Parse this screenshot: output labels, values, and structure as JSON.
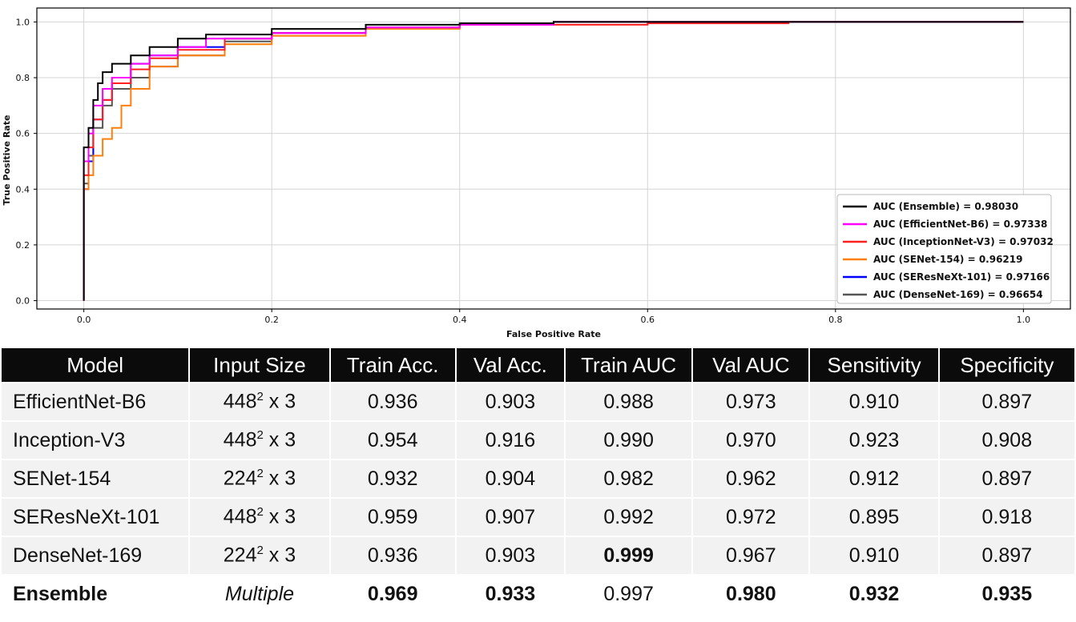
{
  "chart_data": {
    "type": "line",
    "xlabel": "False Positive Rate",
    "ylabel": "True Positive Rate",
    "xlim": [
      -0.05,
      1.05
    ],
    "ylim": [
      -0.03,
      1.05
    ],
    "x_ticks": [
      "0.0",
      "0.2",
      "0.4",
      "0.6",
      "0.8",
      "1.0"
    ],
    "y_ticks": [
      "0.0",
      "0.2",
      "0.4",
      "0.6",
      "0.8",
      "1.0"
    ],
    "grid": true,
    "legend_position": "bottom-right",
    "series": [
      {
        "name": "AUC (Ensemble) = 0.98030",
        "color": "#000000",
        "x": [
          0,
          0.0,
          0.005,
          0.01,
          0.015,
          0.02,
          0.03,
          0.05,
          0.07,
          0.1,
          0.13,
          0.2,
          0.3,
          0.4,
          0.5,
          1.0
        ],
        "y": [
          0,
          0.55,
          0.62,
          0.72,
          0.78,
          0.82,
          0.85,
          0.88,
          0.91,
          0.94,
          0.955,
          0.975,
          0.99,
          0.995,
          1.0,
          1.0
        ]
      },
      {
        "name": "AUC (EfficientNet-B6) = 0.97338",
        "color": "#ff00ff",
        "x": [
          0,
          0.0,
          0.005,
          0.01,
          0.02,
          0.03,
          0.05,
          0.07,
          0.1,
          0.13,
          0.2,
          0.3,
          0.4,
          0.5,
          1.0
        ],
        "y": [
          0,
          0.5,
          0.6,
          0.7,
          0.76,
          0.8,
          0.85,
          0.88,
          0.91,
          0.94,
          0.96,
          0.98,
          0.99,
          1.0,
          1.0
        ]
      },
      {
        "name": "AUC (InceptionNet-V3) = 0.97032",
        "color": "#ff2020",
        "x": [
          0,
          0.0,
          0.005,
          0.01,
          0.02,
          0.03,
          0.05,
          0.07,
          0.1,
          0.15,
          0.2,
          0.3,
          0.4,
          0.6,
          0.75,
          1.0
        ],
        "y": [
          0,
          0.45,
          0.55,
          0.65,
          0.72,
          0.78,
          0.83,
          0.87,
          0.9,
          0.94,
          0.96,
          0.98,
          0.99,
          0.995,
          1.0,
          1.0
        ]
      },
      {
        "name": "AUC (SENet-154) = 0.96219",
        "color": "#ff7f0e",
        "x": [
          0,
          0.0,
          0.005,
          0.01,
          0.02,
          0.03,
          0.04,
          0.05,
          0.07,
          0.1,
          0.15,
          0.2,
          0.3,
          0.4,
          0.5,
          1.0
        ],
        "y": [
          0,
          0.4,
          0.45,
          0.52,
          0.58,
          0.62,
          0.7,
          0.76,
          0.84,
          0.88,
          0.92,
          0.95,
          0.975,
          0.99,
          1.0,
          1.0
        ]
      },
      {
        "name": "AUC (SEResNeXt-101) = 0.97166",
        "color": "#0000ff",
        "x": [
          0,
          0.0,
          0.005,
          0.01,
          0.02,
          0.03,
          0.05,
          0.07,
          0.1,
          0.15,
          0.2,
          0.3,
          0.4,
          0.5,
          1.0
        ],
        "y": [
          0,
          0.4,
          0.5,
          0.65,
          0.72,
          0.78,
          0.85,
          0.88,
          0.91,
          0.94,
          0.96,
          0.98,
          0.99,
          1.0,
          1.0
        ]
      },
      {
        "name": "AUC (DenseNet-169) = 0.96654",
        "color": "#555555",
        "x": [
          0,
          0.0,
          0.005,
          0.01,
          0.02,
          0.03,
          0.05,
          0.07,
          0.1,
          0.15,
          0.2,
          0.3,
          0.4,
          0.5,
          1.0
        ],
        "y": [
          0,
          0.42,
          0.52,
          0.62,
          0.7,
          0.76,
          0.8,
          0.84,
          0.88,
          0.93,
          0.96,
          0.98,
          0.99,
          1.0,
          1.0
        ]
      }
    ]
  },
  "table": {
    "headers": [
      "Model",
      "Input Size",
      "Train Acc.",
      "Val Acc.",
      "Train AUC",
      "Val AUC",
      "Sensitivity",
      "Specificity"
    ],
    "rows": [
      {
        "model": "EfficientNet-B6",
        "size_base": "448",
        "size_exp": "2",
        "size_tail": " x 3",
        "train_acc": "0.936",
        "val_acc": "0.903",
        "train_auc": "0.988",
        "val_auc": "0.973",
        "sensitivity": "0.910",
        "specificity": "0.897"
      },
      {
        "model": "Inception-V3",
        "size_base": "448",
        "size_exp": "2",
        "size_tail": " x 3",
        "train_acc": "0.954",
        "val_acc": "0.916",
        "train_auc": "0.990",
        "val_auc": "0.970",
        "sensitivity": "0.923",
        "specificity": "0.908"
      },
      {
        "model": "SENet-154",
        "size_base": "224",
        "size_exp": "2",
        "size_tail": " x 3",
        "train_acc": "0.932",
        "val_acc": "0.904",
        "train_auc": "0.982",
        "val_auc": "0.962",
        "sensitivity": "0.912",
        "specificity": "0.897"
      },
      {
        "model": "SEResNeXt-101",
        "size_base": "448",
        "size_exp": "2",
        "size_tail": " x 3",
        "train_acc": "0.959",
        "val_acc": "0.907",
        "train_auc": "0.992",
        "val_auc": "0.972",
        "sensitivity": "0.895",
        "specificity": "0.918"
      },
      {
        "model": "DenseNet-169",
        "size_base": "224",
        "size_exp": "2",
        "size_tail": " x 3",
        "train_acc": "0.936",
        "val_acc": "0.903",
        "train_auc": "0.999",
        "val_auc": "0.967",
        "sensitivity": "0.910",
        "specificity": "0.897"
      }
    ],
    "ensemble": {
      "model": "Ensemble",
      "size": "Multiple",
      "train_acc": "0.969",
      "val_acc": "0.933",
      "train_auc": "0.997",
      "val_auc": "0.980",
      "sensitivity": "0.932",
      "specificity": "0.935"
    }
  }
}
